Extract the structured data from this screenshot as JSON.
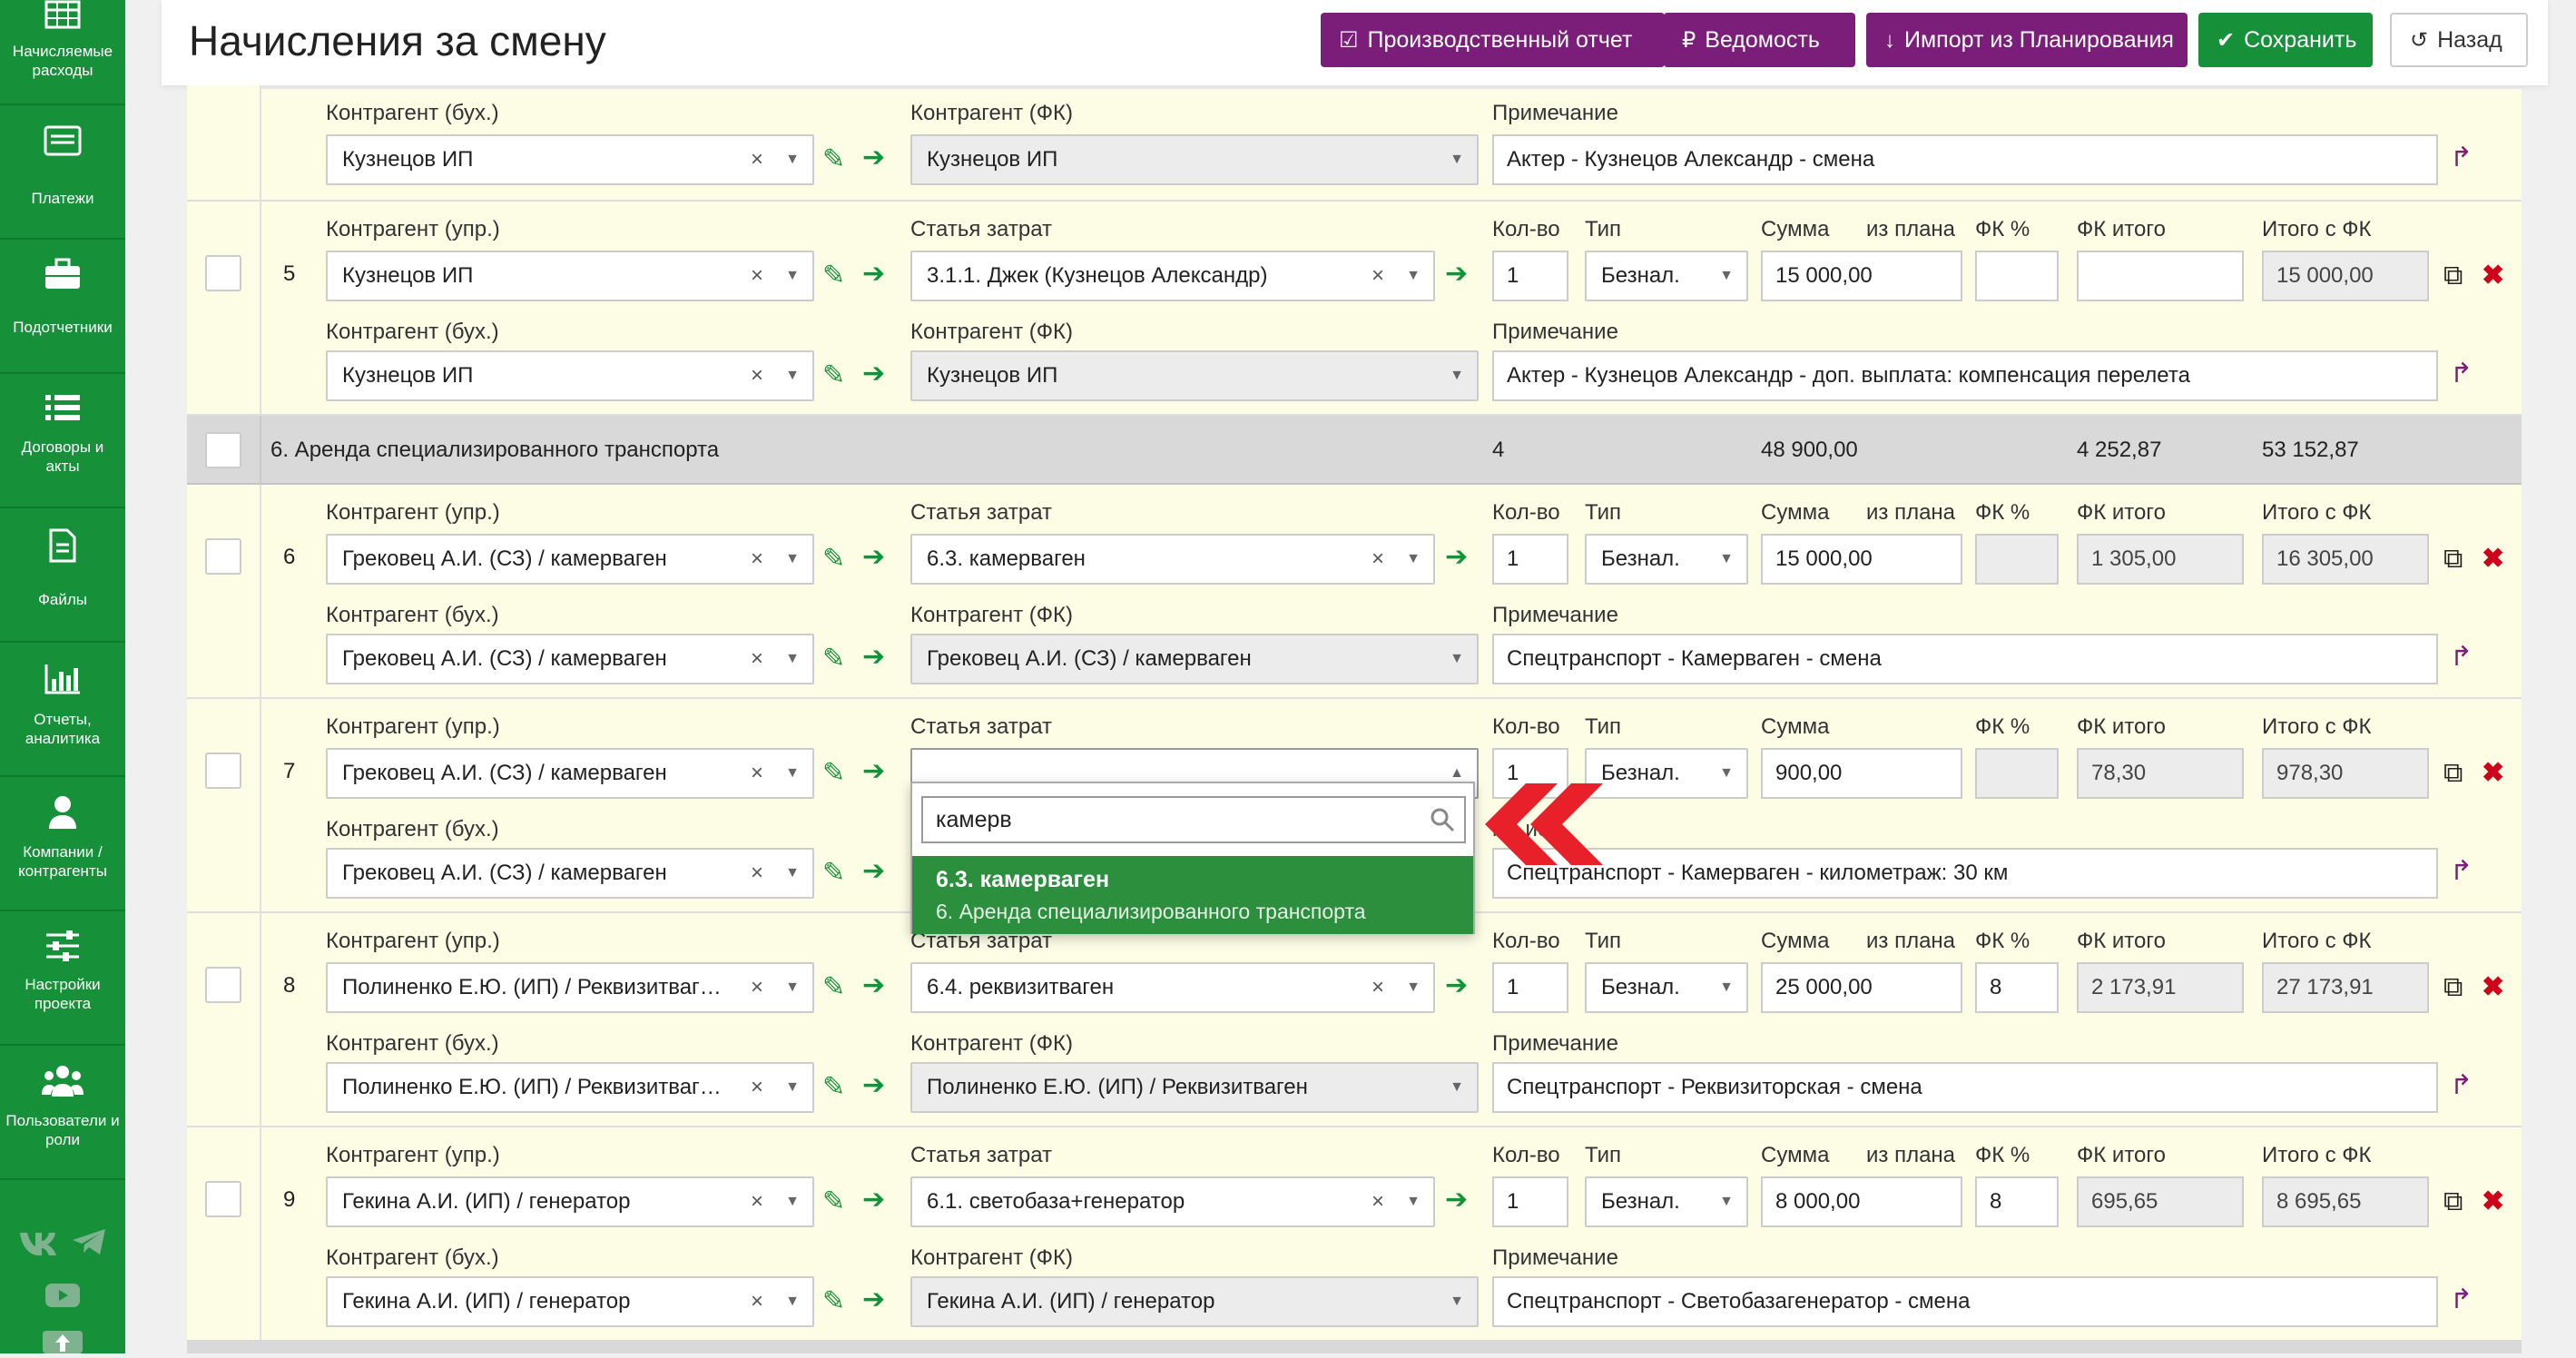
{
  "sidebar": {
    "items": [
      {
        "label": "Начисляемые\nрасходы",
        "icon": "table-icon"
      },
      {
        "label": "Платежи",
        "icon": "payments-icon"
      },
      {
        "label": "Подотчетники",
        "icon": "briefcase-icon"
      },
      {
        "label": "Договоры и\nакты",
        "icon": "list-icon"
      },
      {
        "label": "Файлы",
        "icon": "file-icon"
      },
      {
        "label": "Отчеты,\nаналитика",
        "icon": "bar-chart-icon"
      },
      {
        "label": "Компании /\nконтрагенты",
        "icon": "user-icon"
      },
      {
        "label": "Настройки\nпроекта",
        "icon": "sliders-icon"
      },
      {
        "label": "Пользователи и\nроли",
        "icon": "users-icon"
      }
    ],
    "social": [
      "vk-icon",
      "telegram-icon",
      "youtube-icon"
    ]
  },
  "header": {
    "title": "Начисления за смену",
    "buttons": {
      "report": "Производственный отчет",
      "statement": "Ведомость",
      "import": "Импорт из Планирования",
      "save": "Сохранить",
      "back": "Назад"
    }
  },
  "labels": {
    "cp_upr": "Контрагент (упр.)",
    "cp_buh": "Контрагент (бух.)",
    "cp_fk": "Контрагент (ФК)",
    "cost_item": "Статья затрат",
    "note": "Примечание",
    "qty": "Кол-во",
    "type": "Тип",
    "sum": "Сумма",
    "from_plan": "из плана",
    "fk_pct": "ФК %",
    "fk_total": "ФК итого",
    "total_fk": "Итого с ФК"
  },
  "top_partial": {
    "cp_buh": "Кузнецов ИП",
    "cp_fk": "Кузнецов ИП",
    "note": "Актер - Кузнецов Александр - смена"
  },
  "rows": [
    {
      "num": "5",
      "cp_upr": "Кузнецов ИП",
      "cost_item": "3.1.1. Джек (Кузнецов Александр)",
      "qty": "1",
      "type": "Безнал.",
      "sum": "15 000,00",
      "fk_pct": "",
      "fk_total": "",
      "total_fk": "15 000,00",
      "cp_buh": "Кузнецов ИП",
      "cp_fk": "Кузнецов ИП",
      "note": "Актер - Кузнецов Александр - доп. выплата: компенсация перелета"
    },
    {
      "num": "6",
      "cp_upr": "Грековец А.И. (СЗ) / камерваген",
      "cost_item": "6.3. камерваген",
      "qty": "1",
      "type": "Безнал.",
      "sum": "15 000,00",
      "fk_pct": "",
      "fk_total": "1 305,00",
      "total_fk": "16 305,00",
      "cp_buh": "Грековец А.И. (СЗ) / камерваген",
      "cp_fk": "Грековец А.И. (СЗ) / камерваген",
      "note": "Спецтранспорт - Камерваген - смена"
    },
    {
      "num": "7",
      "cp_upr": "Грековец А.И. (СЗ) / камерваген",
      "cost_item": "",
      "qty": "1",
      "type": "Безнал.",
      "sum": "900,00",
      "fk_pct": "",
      "fk_total": "78,30",
      "total_fk": "978,30",
      "cp_buh": "Грековец А.И. (СЗ) / камерваген",
      "cp_fk": "",
      "note": "Спецтранспорт - Камерваген - километраж: 30 км"
    },
    {
      "num": "8",
      "cp_upr": "Полиненко Е.Ю. (ИП) / Реквизитваг…",
      "cost_item": "6.4. реквизитваген",
      "qty": "1",
      "type": "Безнал.",
      "sum": "25 000,00",
      "fk_pct": "8",
      "fk_total": "2 173,91",
      "total_fk": "27 173,91",
      "cp_buh": "Полиненко Е.Ю. (ИП) / Реквизитваг…",
      "cp_fk": "Полиненко Е.Ю. (ИП) / Реквизитваген",
      "note": "Спецтранспорт - Реквизиторская - смена"
    },
    {
      "num": "9",
      "cp_upr": "Гекина А.И. (ИП) / генератор",
      "cost_item": "6.1. светобаза+генератор",
      "qty": "1",
      "type": "Безнал.",
      "sum": "8 000,00",
      "fk_pct": "8",
      "fk_total": "695,65",
      "total_fk": "8 695,65",
      "cp_buh": "Гекина А.И. (ИП) / генератор",
      "cp_fk": "Гекина А.И. (ИП) / генератор",
      "note": "Спецтранспорт - Светобазагенератор - смена"
    }
  ],
  "group": {
    "title": "6. Аренда специализированного транспорта",
    "qty": "4",
    "sum": "48 900,00",
    "fk_total": "4 252,87",
    "total_fk": "53 152,87"
  },
  "dropdown": {
    "search": "камерв",
    "option_title": "6.3. камерваген",
    "option_group": "6. Аренда специализированного транспорта",
    "note_label_fragment": "ме       ие"
  }
}
